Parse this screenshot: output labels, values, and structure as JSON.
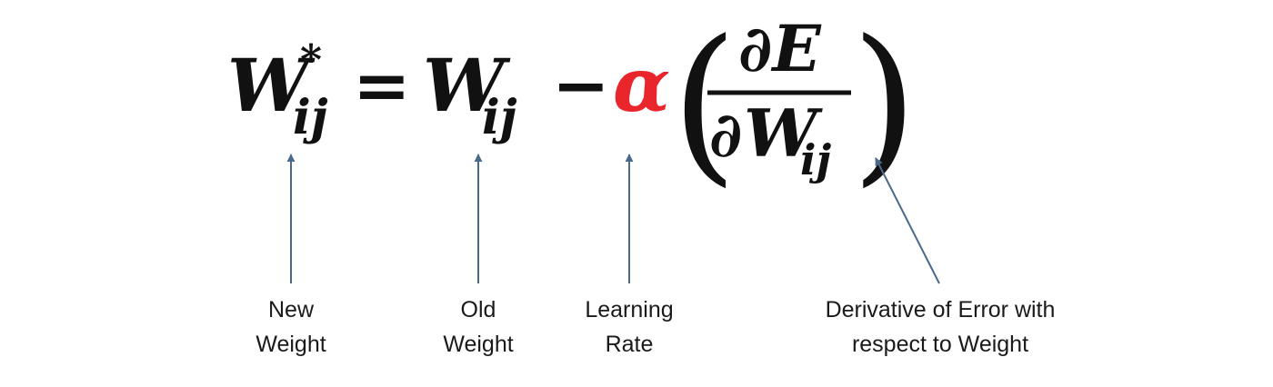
{
  "colors": {
    "text": "#111111",
    "alpha": "#e8262b",
    "arrow": "#4a6a8c"
  },
  "equation": {
    "new_weight": {
      "symbol": "W",
      "superscript": "*",
      "subscript": "ij"
    },
    "equals": "=",
    "old_weight": {
      "symbol": "W",
      "subscript": "ij"
    },
    "minus": "−",
    "learning_rate_symbol": "α",
    "open_paren": "(",
    "close_paren": ")",
    "fraction": {
      "numerator": "∂E",
      "denominator_prefix": "∂",
      "denominator_symbol": "W",
      "denominator_subscript": "ij"
    }
  },
  "labels": {
    "new_weight": [
      "New",
      "Weight"
    ],
    "old_weight": [
      "Old",
      "Weight"
    ],
    "learning_rate": [
      "Learning",
      "Rate"
    ],
    "derivative": [
      "Derivative of Error with",
      "respect to Weight"
    ]
  }
}
